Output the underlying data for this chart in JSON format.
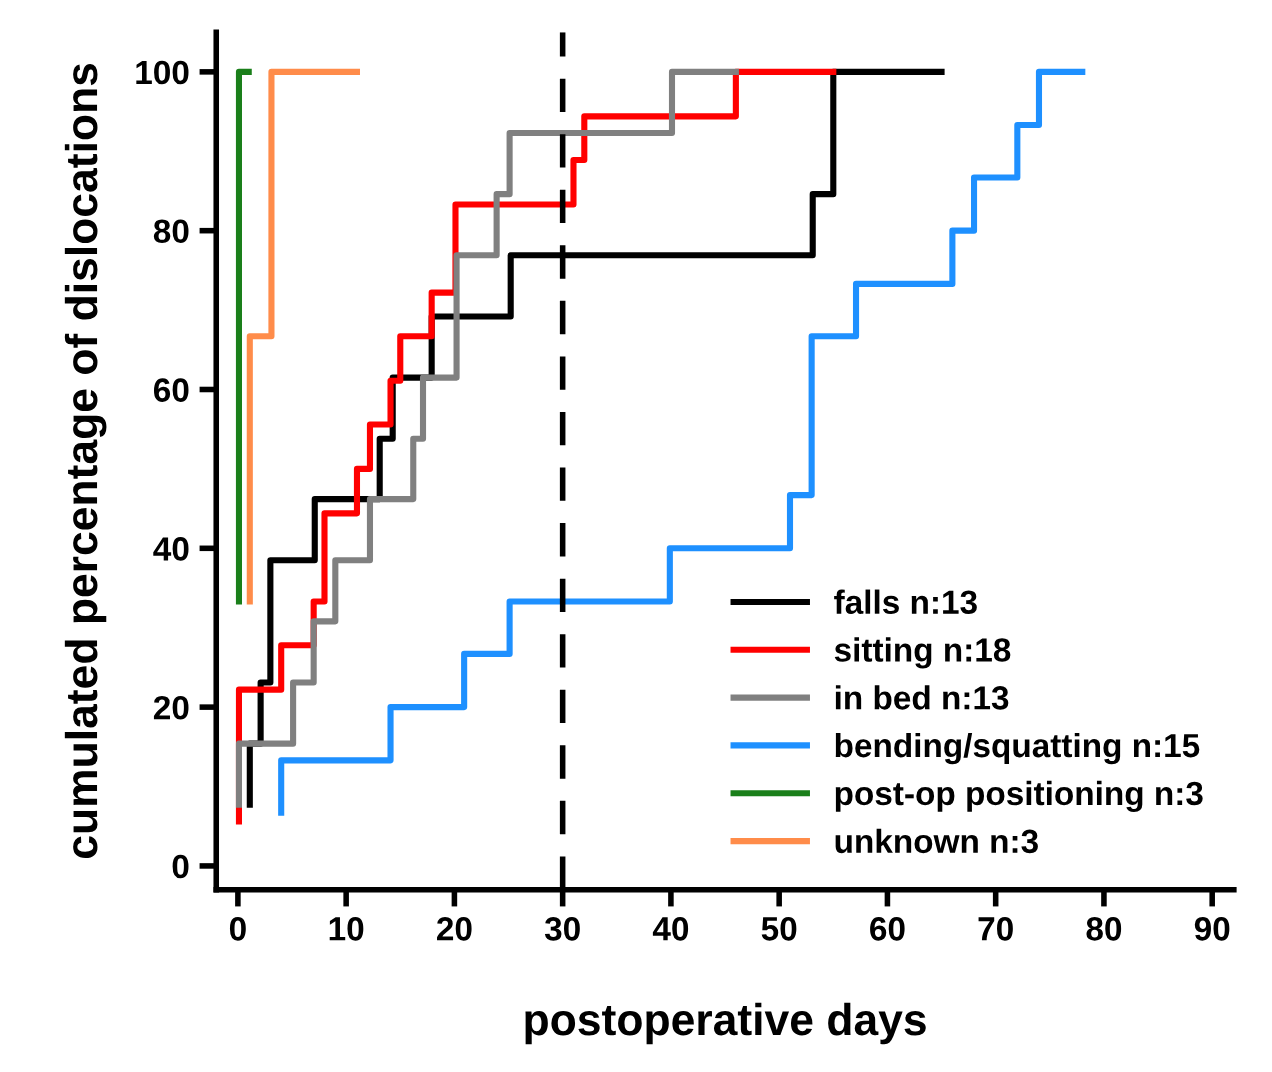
{
  "chart_data": {
    "type": "step",
    "xlabel": "postoperative days",
    "ylabel": "cumulated percentage of dislocations",
    "xlim": [
      -2,
      92
    ],
    "ylim": [
      -3,
      105
    ],
    "xticks": [
      0,
      10,
      20,
      30,
      40,
      50,
      60,
      70,
      80,
      90
    ],
    "yticks": [
      0,
      20,
      40,
      60,
      80,
      100
    ],
    "grid": false,
    "legend": "bottom right",
    "marker": "none",
    "line_style": "solid",
    "ref_lines": [
      {
        "axis": "x",
        "value": 30,
        "color": "#000000",
        "line_style": "dashed"
      }
    ],
    "series": [
      {
        "name": "falls n:13",
        "color": "#000000",
        "x": [
          1.1,
          1.1,
          2.1,
          3.0,
          7.1,
          13.1,
          14.3,
          17.9,
          25.2,
          53.1,
          55.0,
          65
        ],
        "values": [
          7.7,
          15.4,
          23.1,
          38.5,
          46.2,
          53.8,
          61.5,
          69.2,
          76.9,
          84.6,
          100,
          100
        ]
      },
      {
        "name": "sitting n:18",
        "color": "#ff0000",
        "x": [
          0.1,
          0.1,
          4.0,
          7.0,
          8.0,
          11.0,
          12.2,
          14.1,
          15.0,
          17.9,
          20.1,
          31.0,
          32.0,
          46.0,
          55
        ],
        "values": [
          5.6,
          22.2,
          27.8,
          33.3,
          44.4,
          50.0,
          55.6,
          61.1,
          66.7,
          72.2,
          83.3,
          88.9,
          94.4,
          100,
          100
        ]
      },
      {
        "name": "in bed n:13",
        "color": "#808080",
        "x": [
          0.1,
          0.1,
          5.1,
          7.0,
          9.0,
          12.2,
          16.2,
          17.1,
          20.2,
          23.9,
          25.1,
          40.1,
          46
        ],
        "values": [
          7.7,
          15.4,
          23.1,
          30.8,
          38.5,
          46.2,
          53.8,
          61.5,
          76.9,
          84.6,
          92.3,
          100,
          100
        ]
      },
      {
        "name": "bending/squatting n:15",
        "color": "#1e90ff",
        "x": [
          4.0,
          4.0,
          14.1,
          20.9,
          25.1,
          39.9,
          51.0,
          53.0,
          57.1,
          66.0,
          68.0,
          72.0,
          74.0,
          78
        ],
        "values": [
          6.7,
          13.3,
          20.0,
          26.7,
          33.3,
          40.0,
          46.7,
          66.7,
          73.3,
          80.0,
          86.7,
          93.3,
          100,
          100
        ]
      },
      {
        "name": "post-op positioning n:3",
        "color": "#1a7f1a",
        "x": [
          0.1,
          0.1,
          0.1,
          1.0
        ],
        "values": [
          33.3,
          66.7,
          100,
          100
        ]
      },
      {
        "name": "unknown n:3",
        "color": "#ff8c4a",
        "x": [
          1.1,
          1.1,
          3.1,
          11.0
        ],
        "values": [
          33.3,
          66.7,
          100,
          100
        ]
      }
    ]
  }
}
